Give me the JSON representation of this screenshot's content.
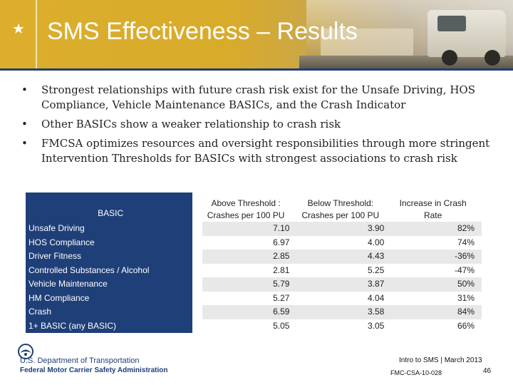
{
  "slide": {
    "title": "SMS Effectiveness – Results",
    "star_icon": "star-icon"
  },
  "bullets": [
    "Strongest relationships with future crash risk exist for the Unsafe Driving, HOS Compliance, Vehicle Maintenance BASICs, and the Crash Indicator",
    "Other BASICs show a weaker relationship to crash risk",
    "FMCSA optimizes resources and oversight responsibilities through more stringent Intervention Thresholds for BASICs with strongest associations to crash risk"
  ],
  "bullet_glyph": "•",
  "table": {
    "headers": {
      "basic": "BASIC",
      "above": "Above Threshold : Crashes per 100 PU",
      "below": "Below Threshold: Crashes per 100 PU",
      "increase": "Increase in Crash Rate"
    },
    "rows": [
      {
        "basic": "Unsafe Driving",
        "above": "7.10",
        "below": "3.90",
        "increase": "82%"
      },
      {
        "basic": "HOS Compliance",
        "above": "6.97",
        "below": "4.00",
        "increase": "74%"
      },
      {
        "basic": "Driver Fitness",
        "above": "2.85",
        "below": "4.43",
        "increase": "-36%"
      },
      {
        "basic": "Controlled Substances / Alcohol",
        "above": "2.81",
        "below": "5.25",
        "increase": "-47%"
      },
      {
        "basic": "Vehicle Maintenance",
        "above": "5.79",
        "below": "3.87",
        "increase": "50%"
      },
      {
        "basic": "HM Compliance",
        "above": "5.27",
        "below": "4.04",
        "increase": "31%"
      },
      {
        "basic": "Crash",
        "above": "6.59",
        "below": "3.58",
        "increase": "84%"
      },
      {
        "basic": "1+ BASIC (any BASIC)",
        "above": "5.05",
        "below": "3.05",
        "increase": "66%"
      }
    ]
  },
  "footer": {
    "dept": "U.S. Department of Transportation",
    "admin": "Federal Motor Carrier Safety Administration",
    "course": "Intro to SMS | March 2013",
    "page": "46",
    "code": "FMC-CSA-10-028"
  },
  "colors": {
    "banner": "#dcae2c",
    "navy": "#1f3f78",
    "row_shade": "#e8e8e8"
  }
}
